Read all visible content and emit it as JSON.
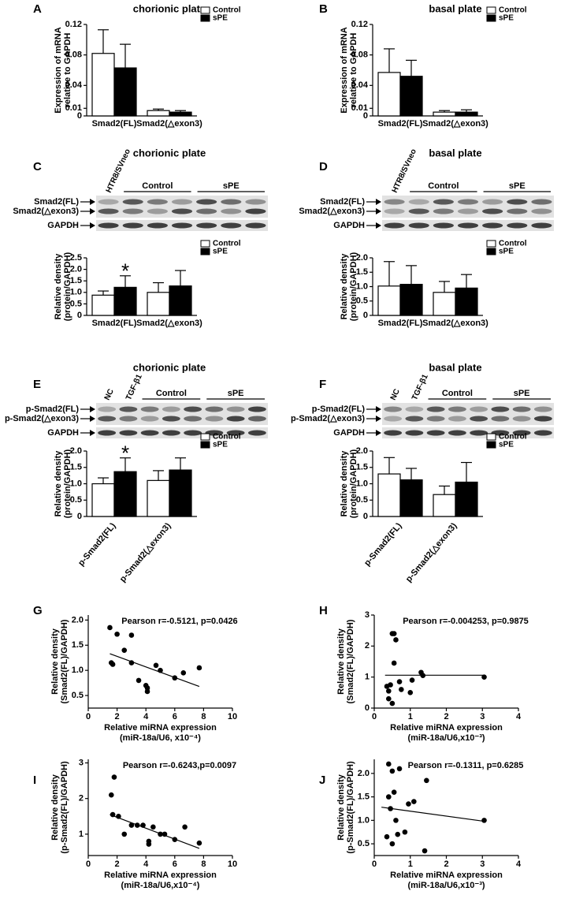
{
  "chart_data": [
    {
      "type": "bar",
      "panel": "A",
      "title": "chorionic plate",
      "ylabel": [
        "Expression of mRNA",
        "relative to GAPDH"
      ],
      "categories": [
        "Smad2(FL)",
        "Smad2(△exon3)"
      ],
      "series": [
        {
          "name": "Control",
          "color": "#ffffff",
          "values": [
            0.082,
            0.007
          ],
          "errors": [
            0.031,
            0.002
          ]
        },
        {
          "name": "sPE",
          "color": "#000000",
          "values": [
            0.063,
            0.005
          ],
          "errors": [
            0.031,
            0.002
          ]
        }
      ],
      "ylim": [
        0,
        0.12
      ],
      "yticks": [
        0,
        0.01,
        0.04,
        0.08,
        0.12
      ]
    },
    {
      "type": "bar",
      "panel": "B",
      "title": "basal plate",
      "ylabel": [
        "Expression of mRNA",
        "relative to GAPDH"
      ],
      "categories": [
        "Smad2(FL)",
        "Smad2(△exon3)"
      ],
      "series": [
        {
          "name": "Control",
          "color": "#ffffff",
          "values": [
            0.057,
            0.005
          ],
          "errors": [
            0.031,
            0.002
          ]
        },
        {
          "name": "sPE",
          "color": "#000000",
          "values": [
            0.052,
            0.005
          ],
          "errors": [
            0.021,
            0.003
          ]
        }
      ],
      "ylim": [
        0,
        0.12
      ],
      "yticks": [
        0,
        0.01,
        0.04,
        0.08,
        0.12
      ]
    },
    {
      "type": "bar",
      "panel": "C",
      "title": "chorionic plate",
      "ylabel": [
        "Relative density",
        "(protein/GAPDH)"
      ],
      "blot": {
        "lanes": [
          "HTR8/SVneo"
        ],
        "groups": [
          "Control",
          "sPE"
        ],
        "rows": [
          "Smad2(FL)",
          "Smad2(△exon3)",
          "GAPDH"
        ]
      },
      "categories": [
        "Smad2(FL)",
        "Smad2(△exon3)"
      ],
      "series": [
        {
          "name": "Control",
          "color": "#ffffff",
          "values": [
            0.88,
            1.0
          ],
          "errors": [
            0.18,
            0.42
          ]
        },
        {
          "name": "sPE",
          "color": "#000000",
          "values": [
            1.22,
            1.28
          ],
          "errors": [
            0.5,
            0.67
          ]
        }
      ],
      "annotation": {
        "text": "*",
        "series": 1,
        "index": 0
      },
      "ylim": [
        0,
        2.5
      ],
      "yticks": [
        0,
        0.5,
        {
          "value": 1,
          "label": "1.0"
        },
        1.5,
        {
          "value": 2,
          "label": "2.0"
        },
        2.5
      ]
    },
    {
      "type": "bar",
      "panel": "D",
      "title": "basal plate",
      "ylabel": [
        "Relative density",
        "(protein/GAPDH)"
      ],
      "blot": {
        "lanes": [
          "HTR8/SVneo"
        ],
        "groups": [
          "Control",
          "sPE"
        ],
        "rows": [
          "Smad2(FL)",
          "Smad2(△exon3)",
          "GAPDH"
        ]
      },
      "categories": [
        "Smad2(FL)",
        "Smad2(△exon3)"
      ],
      "series": [
        {
          "name": "Control",
          "color": "#ffffff",
          "values": [
            1.02,
            0.8
          ],
          "errors": [
            0.85,
            0.38
          ]
        },
        {
          "name": "sPE",
          "color": "#000000",
          "values": [
            1.08,
            0.95
          ],
          "errors": [
            0.65,
            0.47
          ]
        }
      ],
      "ylim": [
        0,
        2
      ],
      "yticks": [
        0,
        0.5,
        {
          "value": 1,
          "label": "1.0"
        },
        1.5,
        {
          "value": 2,
          "label": "2.0"
        }
      ]
    },
    {
      "type": "bar",
      "panel": "E",
      "title": "chorionic plate",
      "ylabel": [
        "Relative density",
        "(protein/GAPDH)"
      ],
      "blot": {
        "lanes": [
          "NC",
          "TGF-β1"
        ],
        "groups": [
          "Control",
          "sPE"
        ],
        "rows": [
          "p-Smad2(FL)",
          "p-Smad2(△exon3)",
          "GAPDH"
        ]
      },
      "categories": [
        "p-Smad2(FL)",
        "p-Smad2(△exon3)"
      ],
      "label_rotation": -50,
      "series": [
        {
          "name": "Control",
          "color": "#ffffff",
          "values": [
            1.0,
            1.1
          ],
          "errors": [
            0.18,
            0.3
          ]
        },
        {
          "name": "sPE",
          "color": "#000000",
          "values": [
            1.37,
            1.42
          ],
          "errors": [
            0.42,
            0.37
          ]
        }
      ],
      "annotation": {
        "text": "*",
        "series": 1,
        "index": 0
      },
      "ylim": [
        0,
        2
      ],
      "yticks": [
        0,
        0.5,
        {
          "value": 1,
          "label": "1.0"
        },
        1.5,
        {
          "value": 2,
          "label": "2.0"
        }
      ]
    },
    {
      "type": "bar",
      "panel": "F",
      "title": "basal plate",
      "ylabel": [
        "Relative density",
        "(protein/GAPDH)"
      ],
      "blot": {
        "lanes": [
          "NC",
          "TGF-β1"
        ],
        "groups": [
          "Control",
          "sPE"
        ],
        "rows": [
          "p-Smad2(FL)",
          "p-Smad2(△exon3)",
          "GAPDH"
        ]
      },
      "categories": [
        "p-Smad2(FL)",
        "p-Smad2(△exon3)"
      ],
      "label_rotation": -50,
      "series": [
        {
          "name": "Control",
          "color": "#ffffff",
          "values": [
            1.3,
            0.67
          ],
          "errors": [
            0.5,
            0.26
          ]
        },
        {
          "name": "sPE",
          "color": "#000000",
          "values": [
            1.12,
            1.05
          ],
          "errors": [
            0.35,
            0.6
          ]
        }
      ],
      "ylim": [
        0,
        2
      ],
      "yticks": [
        0,
        0.5,
        {
          "value": 1,
          "label": "1.0"
        },
        1.5,
        {
          "value": 2,
          "label": "2.0"
        }
      ]
    },
    {
      "type": "scatter",
      "panel": "G",
      "annotation": "Pearson r=-0.5121, p=0.0426",
      "xlabel": [
        "Relative miRNA expression",
        "(miR-18a/U6, x10⁻⁴)"
      ],
      "ylabel": [
        "Relative density",
        "(Smad2(FL)/GAPDH)"
      ],
      "x": [
        1.5,
        2.0,
        2.5,
        3.0,
        1.6,
        1.7,
        3.0,
        3.5,
        4.0,
        4.1,
        4.1,
        4.7,
        5.0,
        6.0,
        6.6,
        7.7
      ],
      "values": [
        1.85,
        1.72,
        1.4,
        1.7,
        1.15,
        1.12,
        1.15,
        0.8,
        0.7,
        0.65,
        0.58,
        1.1,
        1.0,
        0.85,
        0.95,
        1.05
      ],
      "fit": {
        "x": [
          1.5,
          7.7
        ],
        "y": [
          1.33,
          0.68
        ]
      },
      "color": "#000000",
      "xlim": [
        0,
        10
      ],
      "xticks": [
        0,
        2,
        4,
        6,
        8,
        10
      ],
      "ylim": [
        0.25,
        2.1
      ],
      "yticks": [
        0.5,
        {
          "value": 1,
          "label": "1.0"
        },
        1.5,
        {
          "value": 2,
          "label": "2.0"
        }
      ]
    },
    {
      "type": "scatter",
      "panel": "H",
      "annotation": "Pearson r=-0.004253, p=0.9875",
      "xlabel": [
        "Relative miRNA expression",
        "(miR-18a/U6,x10⁻³)"
      ],
      "ylabel": [
        "Relative density",
        "(Smad2(FL)/GAPDH)"
      ],
      "x": [
        0.4,
        0.45,
        0.5,
        0.55,
        0.6,
        0.55,
        0.5,
        0.4,
        0.7,
        0.75,
        1.0,
        1.05,
        1.3,
        1.35,
        3.05,
        0.35
      ],
      "values": [
        0.55,
        0.75,
        2.4,
        2.4,
        2.2,
        1.45,
        0.15,
        0.3,
        0.85,
        0.6,
        0.5,
        0.9,
        1.15,
        1.05,
        1.0,
        0.7
      ],
      "fit": {
        "x": [
          0.3,
          3.05
        ],
        "y": [
          1.06,
          1.06
        ]
      },
      "color": "#000000",
      "xlim": [
        0,
        4
      ],
      "xticks": [
        0,
        1,
        2,
        3,
        4
      ],
      "ylim": [
        0,
        3
      ],
      "yticks": [
        0,
        1,
        2,
        3
      ]
    },
    {
      "type": "scatter",
      "panel": "I",
      "annotation": "Pearson r=-0.6243,p=0.0097",
      "xlabel": [
        "Relative miRNA expression",
        "(miR-18a/U6,x10⁻⁴)"
      ],
      "ylabel": [
        "Relative density",
        "(p-Smad2(FL)/GAPDH)"
      ],
      "x": [
        1.6,
        1.8,
        1.7,
        2.1,
        2.5,
        3.0,
        3.4,
        3.8,
        4.2,
        4.2,
        4.5,
        5.0,
        5.3,
        6.0,
        6.7,
        7.7
      ],
      "values": [
        2.1,
        2.6,
        1.55,
        1.5,
        1.0,
        1.25,
        1.25,
        1.25,
        0.8,
        0.72,
        1.2,
        1.0,
        1.0,
        0.85,
        1.2,
        0.75
      ],
      "fit": {
        "x": [
          1.5,
          7.7
        ],
        "y": [
          1.55,
          0.6
        ]
      },
      "color": "#000000",
      "xlim": [
        0,
        10
      ],
      "xticks": [
        0,
        2,
        4,
        6,
        8,
        10
      ],
      "ylim": [
        0.4,
        3.1
      ],
      "yticks": [
        1,
        2,
        3
      ]
    },
    {
      "type": "scatter",
      "panel": "J",
      "annotation": "Pearson r=-0.1311, p=0.6285",
      "xlabel": [
        "Relative miRNA expression",
        "(miR-18a/U6,x10⁻³)"
      ],
      "ylabel": [
        "Relative density",
        "(p-Smad2(FL)/GAPDH)"
      ],
      "x": [
        0.4,
        0.5,
        0.55,
        0.4,
        0.7,
        0.45,
        0.6,
        0.95,
        0.35,
        0.5,
        0.65,
        0.85,
        1.1,
        1.45,
        1.4,
        3.05
      ],
      "values": [
        2.2,
        2.05,
        1.6,
        1.5,
        2.1,
        1.25,
        1.0,
        1.35,
        0.65,
        0.5,
        0.7,
        0.75,
        1.4,
        1.85,
        0.35,
        1.0
      ],
      "fit": {
        "x": [
          0.2,
          3.05
        ],
        "y": [
          1.28,
          0.98
        ]
      },
      "color": "#000000",
      "xlim": [
        0,
        4
      ],
      "xticks": [
        0,
        1,
        2,
        3,
        4
      ],
      "ylim": [
        0.25,
        2.3
      ],
      "yticks": [
        0.5,
        {
          "value": 1,
          "label": "1.0"
        },
        1.5,
        {
          "value": 2,
          "label": "2.0"
        }
      ]
    }
  ]
}
